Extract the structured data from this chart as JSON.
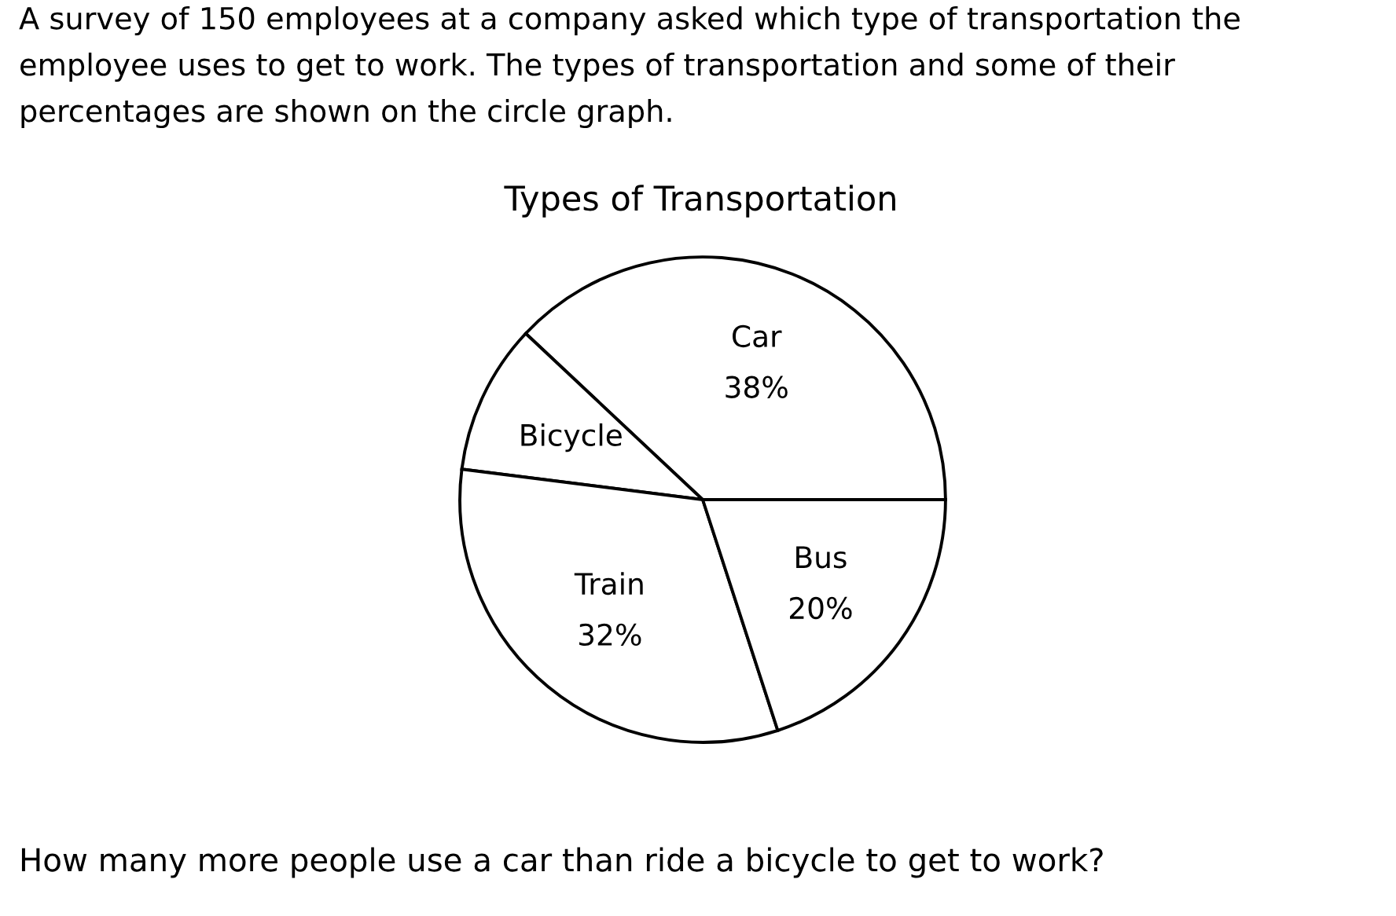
{
  "chart_data": {
    "type": "pie",
    "title": "Types of Transportation",
    "categories": [
      "Car",
      "Bicycle",
      "Train",
      "Bus"
    ],
    "values": [
      38,
      10,
      32,
      20
    ],
    "colors": [
      "#ffffff",
      "#ffffff",
      "#ffffff",
      "#ffffff"
    ],
    "value_labels": [
      "38%",
      null,
      "32%",
      "20%"
    ],
    "annotations": [
      "A survey of 150 employees at a company asked which type of transportation the\nemployee uses to get to work. The types of transportation and some of their\npercentages are shown on the circle graph.",
      "How many more people use a car than ride a bicycle to get to work?"
    ]
  }
}
